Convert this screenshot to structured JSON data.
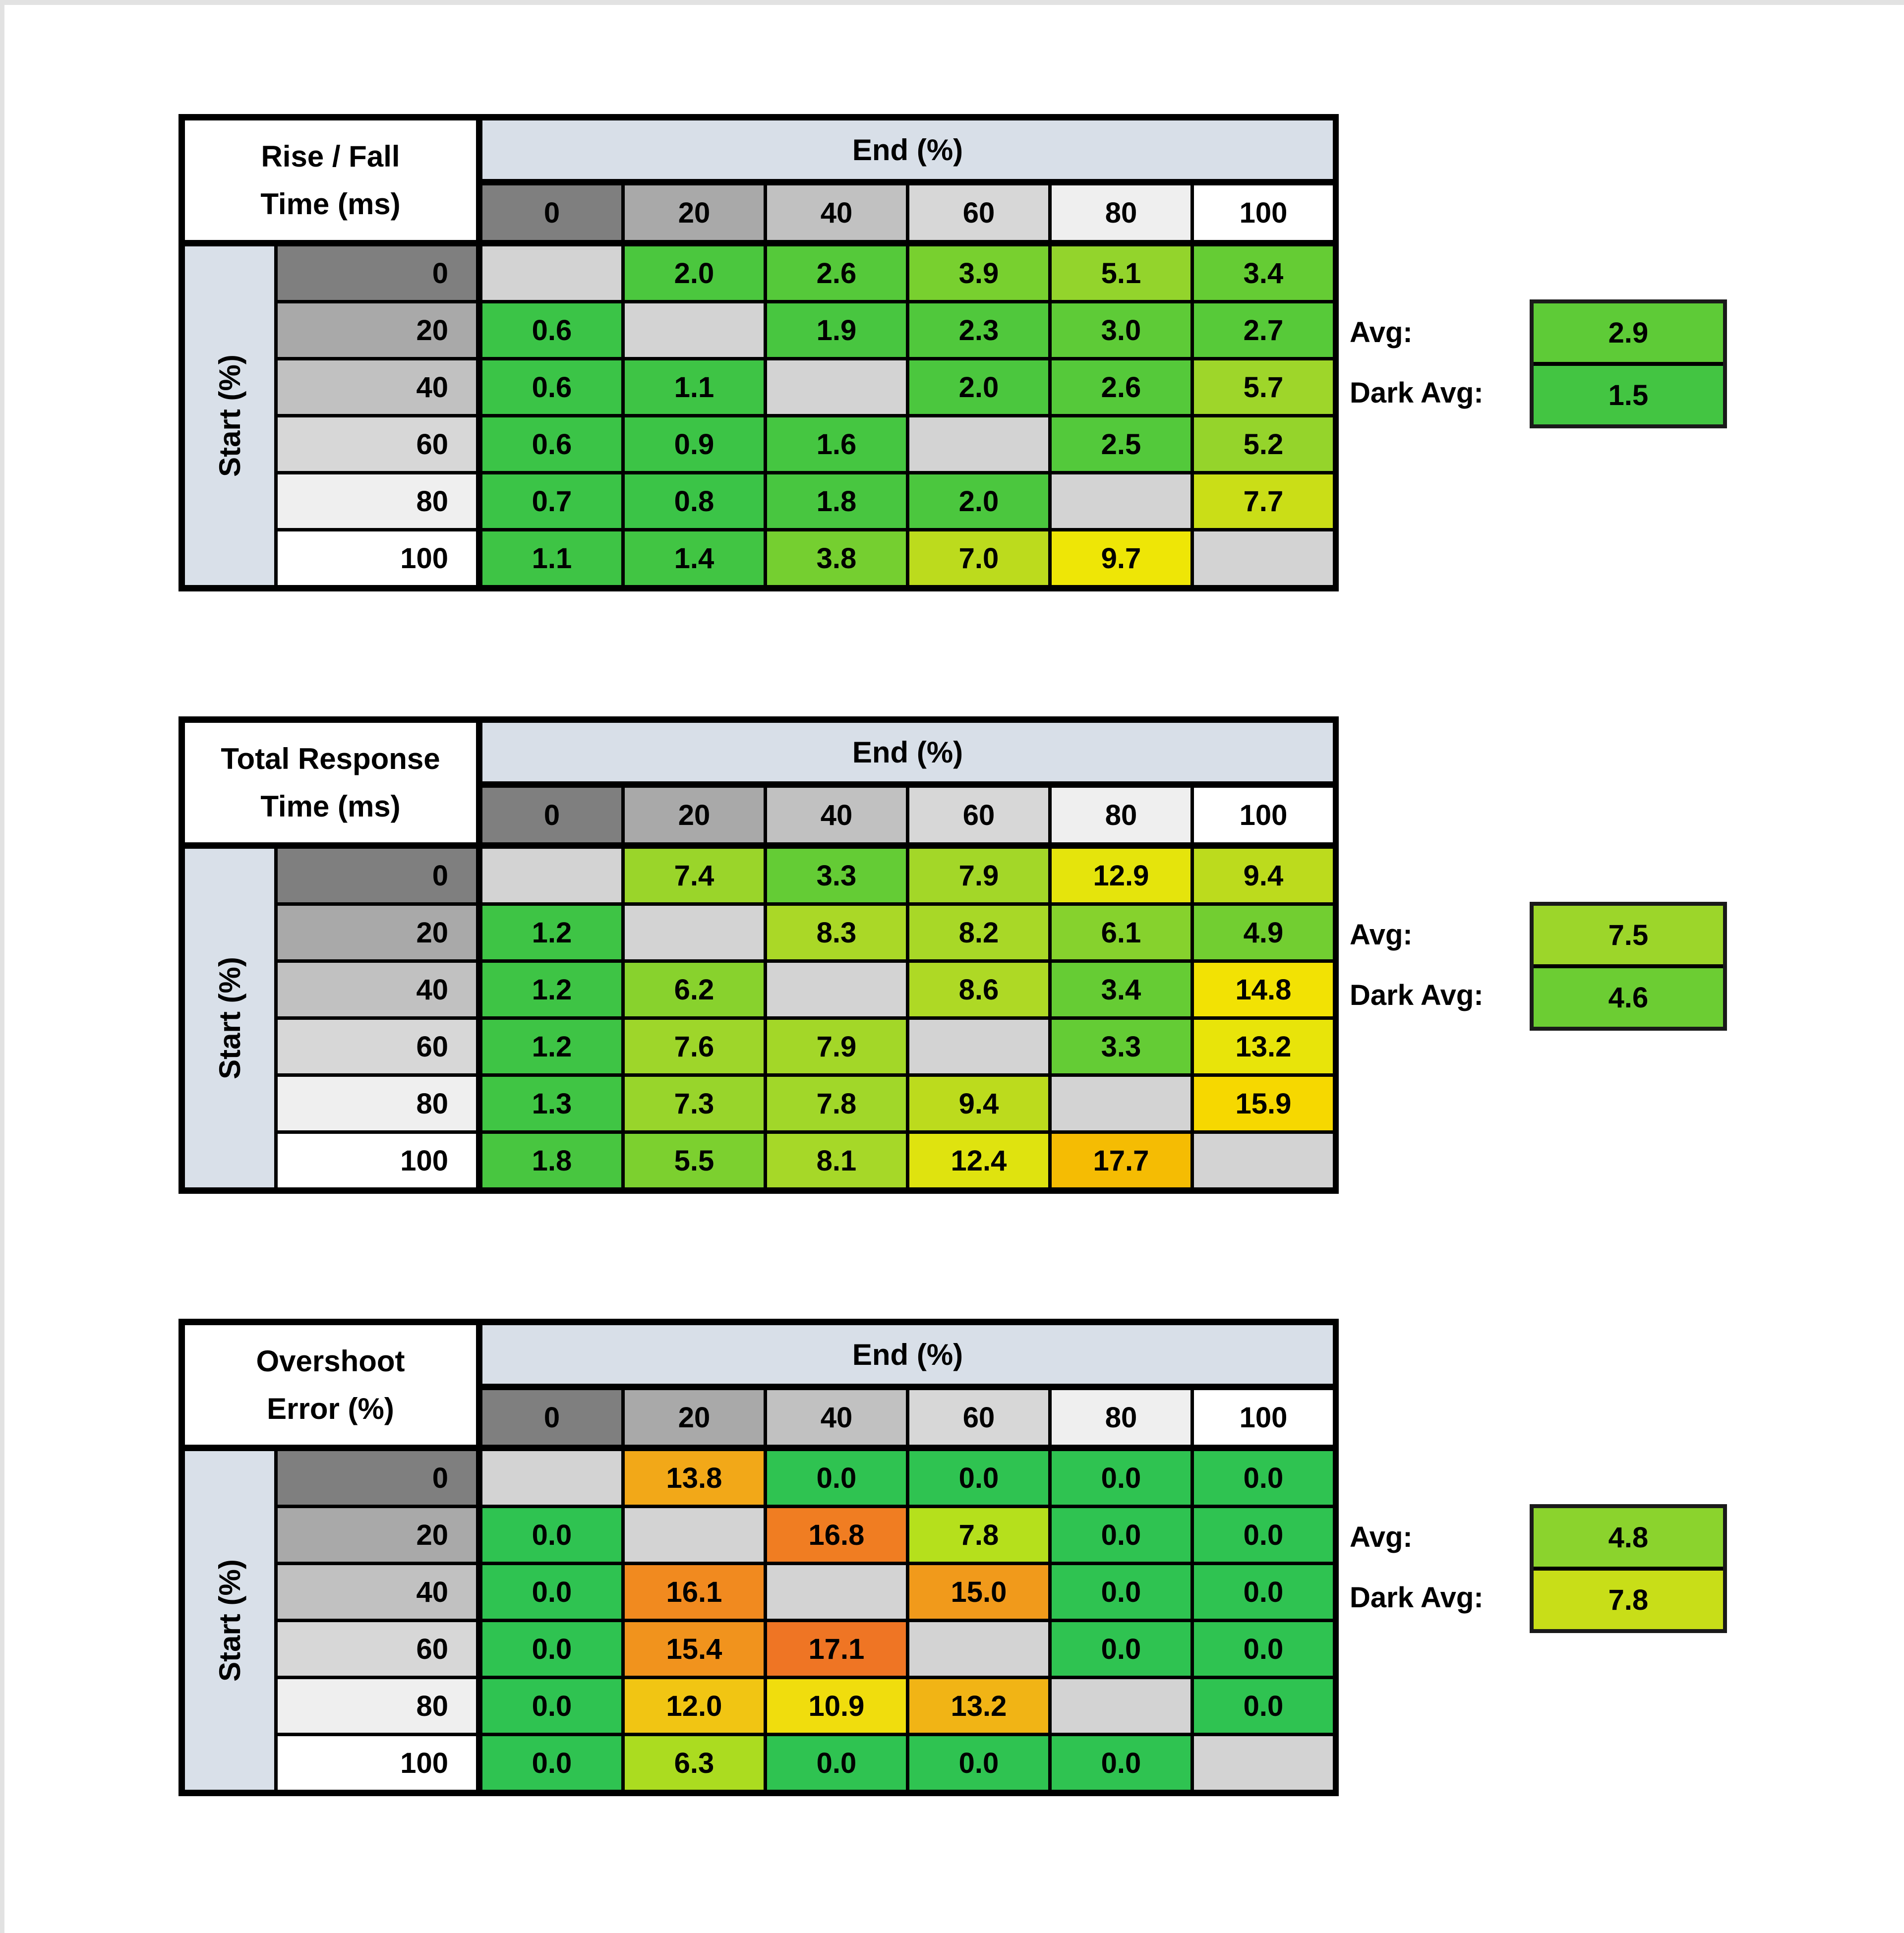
{
  "labels": {
    "end_header": "End (%)",
    "start_label": "Start (%)",
    "avg": "Avg:",
    "dark_avg": "Dark Avg:"
  },
  "axis": {
    "columns": [
      "0",
      "20",
      "40",
      "60",
      "80",
      "100"
    ],
    "rows": [
      "0",
      "20",
      "40",
      "60",
      "80",
      "100"
    ],
    "header_grays": [
      "#7f7f7f",
      "#a9a9a9",
      "#c1c1c1",
      "#d7d7d7",
      "#efefef",
      "#ffffff"
    ]
  },
  "style": {
    "band_bg": "#d8dfe8",
    "strip_bg": "#d9e0e9",
    "diag_bg": "#d3d3d3",
    "grid_color": "#000000",
    "page_edge": "#e2e2e2"
  },
  "tables": [
    {
      "title1": "Rise / Fall",
      "title2": "Time (ms)",
      "avg": "2.9",
      "avg_color": "#5ecb37",
      "dark_avg": "1.5",
      "dark_avg_color": "#43c542",
      "cells": [
        [
          null,
          {
            "v": "2.0",
            "c": "#4bc73e"
          },
          {
            "v": "2.6",
            "c": "#55c93a"
          },
          {
            "v": "3.9",
            "c": "#78d02f"
          },
          {
            "v": "5.1",
            "c": "#93d42c"
          },
          {
            "v": "3.4",
            "c": "#65cc34"
          }
        ],
        [
          {
            "v": "0.6",
            "c": "#3bc447"
          },
          null,
          {
            "v": "1.9",
            "c": "#48c640"
          },
          {
            "v": "2.3",
            "c": "#50c83c"
          },
          {
            "v": "3.0",
            "c": "#5ecb37"
          },
          {
            "v": "2.7",
            "c": "#57ca39"
          }
        ],
        [
          {
            "v": "0.6",
            "c": "#3bc447"
          },
          {
            "v": "1.1",
            "c": "#3ec445"
          },
          null,
          {
            "v": "2.0",
            "c": "#4bc73e"
          },
          {
            "v": "2.6",
            "c": "#55c93a"
          },
          {
            "v": "5.7",
            "c": "#9ed62a"
          }
        ],
        [
          {
            "v": "0.6",
            "c": "#3bc447"
          },
          {
            "v": "0.9",
            "c": "#3cc446"
          },
          {
            "v": "1.6",
            "c": "#45c641"
          },
          null,
          {
            "v": "2.5",
            "c": "#53c93b"
          },
          {
            "v": "5.2",
            "c": "#95d42b"
          }
        ],
        [
          {
            "v": "0.7",
            "c": "#3bc447"
          },
          {
            "v": "0.8",
            "c": "#3bc447"
          },
          {
            "v": "1.8",
            "c": "#48c640"
          },
          {
            "v": "2.0",
            "c": "#4bc73e"
          },
          null,
          {
            "v": "7.7",
            "c": "#cade17"
          }
        ],
        [
          {
            "v": "1.1",
            "c": "#3ec445"
          },
          {
            "v": "1.4",
            "c": "#41c543"
          },
          {
            "v": "3.8",
            "c": "#75cf30"
          },
          {
            "v": "7.0",
            "c": "#bcdb1d"
          },
          {
            "v": "9.7",
            "c": "#eee606"
          },
          null
        ]
      ]
    },
    {
      "title1": "Total Response",
      "title2": "Time (ms)",
      "avg": "7.5",
      "avg_color": "#9cd62a",
      "dark_avg": "4.6",
      "dark_avg_color": "#6ccd33",
      "cells": [
        [
          null,
          {
            "v": "7.4",
            "c": "#9ad52a"
          },
          {
            "v": "3.3",
            "c": "#64cc35"
          },
          {
            "v": "7.9",
            "c": "#a3d728"
          },
          {
            "v": "12.9",
            "c": "#e5e40c"
          },
          {
            "v": "9.4",
            "c": "#bcdb1d"
          }
        ],
        [
          {
            "v": "1.2",
            "c": "#3ec445"
          },
          null,
          {
            "v": "8.3",
            "c": "#aad827"
          },
          {
            "v": "8.2",
            "c": "#a8d827"
          },
          {
            "v": "6.1",
            "c": "#86d22d"
          },
          {
            "v": "4.9",
            "c": "#72ce31"
          }
        ],
        [
          {
            "v": "1.2",
            "c": "#3ec445"
          },
          {
            "v": "6.2",
            "c": "#88d22d"
          },
          null,
          {
            "v": "8.6",
            "c": "#aed925"
          },
          {
            "v": "3.4",
            "c": "#66cc34"
          },
          {
            "v": "14.8",
            "c": "#f2e204"
          }
        ],
        [
          {
            "v": "1.2",
            "c": "#3ec445"
          },
          {
            "v": "7.6",
            "c": "#9ed62a"
          },
          {
            "v": "7.9",
            "c": "#a3d728"
          },
          null,
          {
            "v": "3.3",
            "c": "#64cc35"
          },
          {
            "v": "13.2",
            "c": "#e8e40a"
          }
        ],
        [
          {
            "v": "1.3",
            "c": "#40c544"
          },
          {
            "v": "7.3",
            "c": "#98d52b"
          },
          {
            "v": "7.8",
            "c": "#a1d729"
          },
          {
            "v": "9.4",
            "c": "#bcdb1d"
          },
          null,
          {
            "v": "15.9",
            "c": "#f6d800"
          }
        ],
        [
          {
            "v": "1.8",
            "c": "#48c640"
          },
          {
            "v": "5.5",
            "c": "#7cd02f"
          },
          {
            "v": "8.1",
            "c": "#a6d828"
          },
          {
            "v": "12.4",
            "c": "#dfe30f"
          },
          {
            "v": "17.7",
            "c": "#f5bc03"
          },
          null
        ]
      ]
    },
    {
      "title1": "Overshoot",
      "title2": "Error (%)",
      "avg": "4.8",
      "avg_color": "#8bd32d",
      "dark_avg": "7.8",
      "dark_avg_color": "#c8de18",
      "cells": [
        [
          null,
          {
            "v": "13.8",
            "c": "#f2a818"
          },
          {
            "v": "0.0",
            "c": "#2fc351"
          },
          {
            "v": "0.0",
            "c": "#2fc351"
          },
          {
            "v": "0.0",
            "c": "#2fc351"
          },
          {
            "v": "0.0",
            "c": "#2fc351"
          }
        ],
        [
          {
            "v": "0.0",
            "c": "#2fc351"
          },
          null,
          {
            "v": "16.8",
            "c": "#f07d22"
          },
          {
            "v": "7.8",
            "c": "#b5e01c"
          },
          {
            "v": "0.0",
            "c": "#2fc351"
          },
          {
            "v": "0.0",
            "c": "#2fc351"
          }
        ],
        [
          {
            "v": "0.0",
            "c": "#2fc351"
          },
          {
            "v": "16.1",
            "c": "#f18a1f"
          },
          null,
          {
            "v": "15.0",
            "c": "#f19a1b"
          },
          {
            "v": "0.0",
            "c": "#2fc351"
          },
          {
            "v": "0.0",
            "c": "#2fc351"
          }
        ],
        [
          {
            "v": "0.0",
            "c": "#2fc351"
          },
          {
            "v": "15.4",
            "c": "#f1931d"
          },
          {
            "v": "17.1",
            "c": "#ef7524"
          },
          null,
          {
            "v": "0.0",
            "c": "#2fc351"
          },
          {
            "v": "0.0",
            "c": "#2fc351"
          }
        ],
        [
          {
            "v": "0.0",
            "c": "#2fc351"
          },
          {
            "v": "12.0",
            "c": "#f1c513"
          },
          {
            "v": "10.9",
            "c": "#f0dd0d"
          },
          {
            "v": "13.2",
            "c": "#f1b415"
          },
          null,
          {
            "v": "0.0",
            "c": "#2fc351"
          }
        ],
        [
          {
            "v": "0.0",
            "c": "#2fc351"
          },
          {
            "v": "6.3",
            "c": "#abdc20"
          },
          {
            "v": "0.0",
            "c": "#2fc351"
          },
          {
            "v": "0.0",
            "c": "#2fc351"
          },
          {
            "v": "0.0",
            "c": "#2fc351"
          },
          null
        ]
      ]
    }
  ],
  "chart_data": [
    {
      "type": "heatmap",
      "title": "Rise / Fall Time (ms)",
      "xlabel": "End (%)",
      "ylabel": "Start (%)",
      "x": [
        0,
        20,
        40,
        60,
        80,
        100
      ],
      "y": [
        0,
        20,
        40,
        60,
        80,
        100
      ],
      "values": [
        [
          null,
          2.0,
          2.6,
          3.9,
          5.1,
          3.4
        ],
        [
          0.6,
          null,
          1.9,
          2.3,
          3.0,
          2.7
        ],
        [
          0.6,
          1.1,
          null,
          2.0,
          2.6,
          5.7
        ],
        [
          0.6,
          0.9,
          1.6,
          null,
          2.5,
          5.2
        ],
        [
          0.7,
          0.8,
          1.8,
          2.0,
          null,
          7.7
        ],
        [
          1.1,
          1.4,
          3.8,
          7.0,
          9.7,
          null
        ]
      ],
      "avg": 2.9,
      "dark_avg": 1.5,
      "colorscale": "green-yellow-orange, low=green"
    },
    {
      "type": "heatmap",
      "title": "Total Response Time (ms)",
      "xlabel": "End (%)",
      "ylabel": "Start (%)",
      "x": [
        0,
        20,
        40,
        60,
        80,
        100
      ],
      "y": [
        0,
        20,
        40,
        60,
        80,
        100
      ],
      "values": [
        [
          null,
          7.4,
          3.3,
          7.9,
          12.9,
          9.4
        ],
        [
          1.2,
          null,
          8.3,
          8.2,
          6.1,
          4.9
        ],
        [
          1.2,
          6.2,
          null,
          8.6,
          3.4,
          14.8
        ],
        [
          1.2,
          7.6,
          7.9,
          null,
          3.3,
          13.2
        ],
        [
          1.3,
          7.3,
          7.8,
          9.4,
          null,
          15.9
        ],
        [
          1.8,
          5.5,
          8.1,
          12.4,
          17.7,
          null
        ]
      ],
      "avg": 7.5,
      "dark_avg": 4.6,
      "colorscale": "green-yellow-orange, low=green"
    },
    {
      "type": "heatmap",
      "title": "Overshoot Error (%)",
      "xlabel": "End (%)",
      "ylabel": "Start (%)",
      "x": [
        0,
        20,
        40,
        60,
        80,
        100
      ],
      "y": [
        0,
        20,
        40,
        60,
        80,
        100
      ],
      "values": [
        [
          null,
          13.8,
          0.0,
          0.0,
          0.0,
          0.0
        ],
        [
          0.0,
          null,
          16.8,
          7.8,
          0.0,
          0.0
        ],
        [
          0.0,
          16.1,
          null,
          15.0,
          0.0,
          0.0
        ],
        [
          0.0,
          15.4,
          17.1,
          null,
          0.0,
          0.0
        ],
        [
          0.0,
          12.0,
          10.9,
          13.2,
          null,
          0.0
        ],
        [
          0.0,
          6.3,
          0.0,
          0.0,
          0.0,
          null
        ]
      ],
      "avg": 4.8,
      "dark_avg": 7.8,
      "colorscale": "green-yellow-orange, low=green"
    }
  ]
}
